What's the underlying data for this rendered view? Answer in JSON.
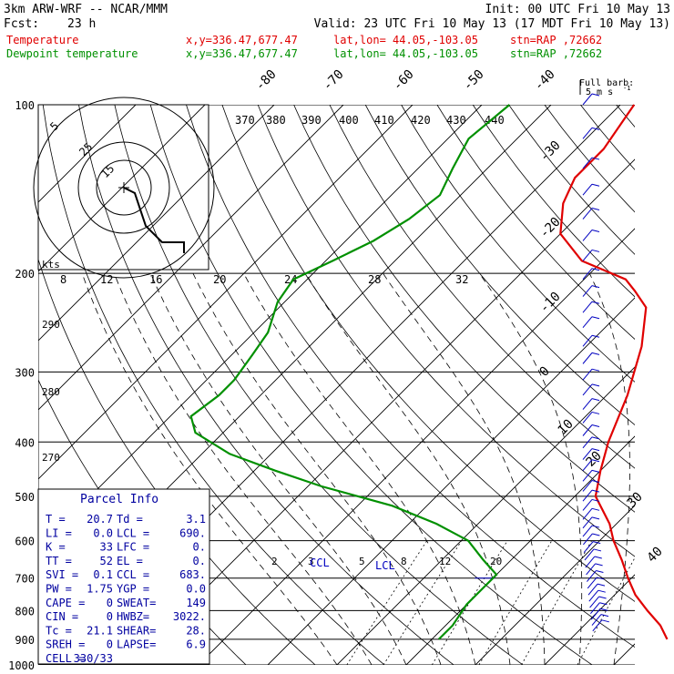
{
  "header": {
    "model": "3km ARW-WRF -- NCAR/MMM",
    "init": "Init: 00 UTC Fri 10 May 13",
    "fcst_label": "Fcst:",
    "fcst_hours": "23 h",
    "valid": "Valid: 23 UTC Fri 10 May 13 (17 MDT Fri 10 May 13)"
  },
  "legend": [
    {
      "name": "Temperature",
      "coords": "x,y=336.47,677.47",
      "latlon": "lat,lon= 44.05,-103.05",
      "stn": "stn=RAP ,72662",
      "color": "#e00000"
    },
    {
      "name": "Dewpoint temperature",
      "coords": "x,y=336.47,677.47",
      "latlon": "lat,lon= 44.05,-103.05",
      "stn": "stn=RAP ,72662",
      "color": "#009000"
    }
  ],
  "barb_key": {
    "line1": "Full barb:",
    "line2": "5 m s",
    "sup": "-1"
  },
  "hodograph": {
    "unit": "kts",
    "ring_labels": [
      "5",
      "25",
      "15"
    ],
    "theta_labels": [
      "370",
      "380",
      "390",
      "400",
      "410",
      "420",
      "430",
      "440"
    ],
    "trace_kts": [
      [
        0,
        0
      ],
      [
        2,
        -1
      ],
      [
        3,
        -4
      ],
      [
        4,
        -7
      ],
      [
        7,
        -10
      ],
      [
        9,
        -10
      ],
      [
        11,
        -10
      ],
      [
        11,
        -12
      ]
    ]
  },
  "parcel_info": {
    "title": "Parcel Info",
    "rows": [
      [
        "T  =",
        "20.7",
        "Td =",
        "3.1"
      ],
      [
        "LI =",
        "0.0",
        "LCL =",
        "690."
      ],
      [
        "K  =",
        "33",
        "LFC =",
        "0."
      ],
      [
        "TT =",
        "52",
        "EL  =",
        "0."
      ],
      [
        "SVI =",
        "0.1",
        "CCL =",
        "683."
      ],
      [
        "PW =",
        "1.75",
        "YGP =",
        "0.0"
      ],
      [
        "CAPE =",
        "0",
        "SWEAT=",
        "149"
      ],
      [
        "CIN =",
        "0",
        "HWBZ=",
        "3022."
      ],
      [
        "Tc =",
        "21.1",
        "SHEAR=",
        "28."
      ],
      [
        "SREH =",
        "0",
        "LAPSE=",
        "6.9"
      ],
      [
        "CELL =",
        "330/33",
        "",
        ""
      ]
    ]
  },
  "lcl_label": "LCL",
  "ccl_label": "CCL",
  "colors": {
    "temperature": "#e00000",
    "dewpoint": "#009000",
    "barbs": "#0000c0",
    "info": "#0000a0",
    "grid": "#000000"
  },
  "chart_data": {
    "type": "line",
    "title": "",
    "y_axis": {
      "scale": "log",
      "unit": "hPa",
      "ylim": [
        1000,
        100
      ],
      "ticks": [
        100,
        200,
        300,
        400,
        500,
        600,
        700,
        800,
        900,
        1000
      ]
    },
    "isotherm_labels": [
      -80,
      -70,
      -60,
      -50,
      -40,
      -30,
      -20,
      -10,
      0,
      10,
      20,
      30,
      40
    ],
    "mixing_ratio_labels": [
      "2",
      "3",
      "5",
      "8",
      "12",
      "20"
    ],
    "lower_theta_labels": [
      "290",
      "280",
      "270"
    ],
    "hodo_speed_labels": [
      "8",
      "12",
      "16",
      "20",
      "24",
      "28",
      "32"
    ],
    "series": [
      {
        "name": "Temperature",
        "color": "#e00000",
        "points": [
          [
            100,
            -48
          ],
          [
            120,
            -46
          ],
          [
            135,
            -46
          ],
          [
            150,
            -44
          ],
          [
            170,
            -40
          ],
          [
            190,
            -33
          ],
          [
            205,
            -24
          ],
          [
            215,
            -21
          ],
          [
            230,
            -17
          ],
          [
            270,
            -12
          ],
          [
            330,
            -7
          ],
          [
            400,
            -3
          ],
          [
            450,
            0
          ],
          [
            500,
            3
          ],
          [
            560,
            9
          ],
          [
            600,
            12
          ],
          [
            650,
            16
          ],
          [
            700,
            19.5
          ],
          [
            750,
            23
          ],
          [
            800,
            27
          ],
          [
            850,
            31
          ],
          [
            900,
            34
          ]
        ]
      },
      {
        "name": "Dewpoint temperature",
        "color": "#009000",
        "points": [
          [
            100,
            -66
          ],
          [
            115,
            -67
          ],
          [
            130,
            -65
          ],
          [
            145,
            -63
          ],
          [
            160,
            -64
          ],
          [
            175,
            -66
          ],
          [
            190,
            -69
          ],
          [
            205,
            -72
          ],
          [
            225,
            -71
          ],
          [
            255,
            -68
          ],
          [
            280,
            -67
          ],
          [
            310,
            -66
          ],
          [
            330,
            -66
          ],
          [
            360,
            -67
          ],
          [
            385,
            -64
          ],
          [
            420,
            -56
          ],
          [
            450,
            -47
          ],
          [
            480,
            -38
          ],
          [
            520,
            -25
          ],
          [
            560,
            -16
          ],
          [
            600,
            -9
          ],
          [
            650,
            -4
          ],
          [
            690,
            0
          ],
          [
            730,
            0
          ],
          [
            780,
            0
          ],
          [
            850,
            1
          ],
          [
            900,
            1
          ]
        ]
      }
    ],
    "wind_profile": {
      "pressures": [
        100,
        115,
        130,
        145,
        160,
        175,
        190,
        205,
        220,
        235,
        250,
        270,
        290,
        310,
        330,
        350,
        370,
        390,
        410,
        430,
        450,
        470,
        490,
        510,
        530,
        550,
        570,
        590,
        610,
        630,
        650,
        670,
        690,
        710,
        730,
        750,
        770,
        790,
        810,
        830,
        850,
        870
      ]
    }
  }
}
